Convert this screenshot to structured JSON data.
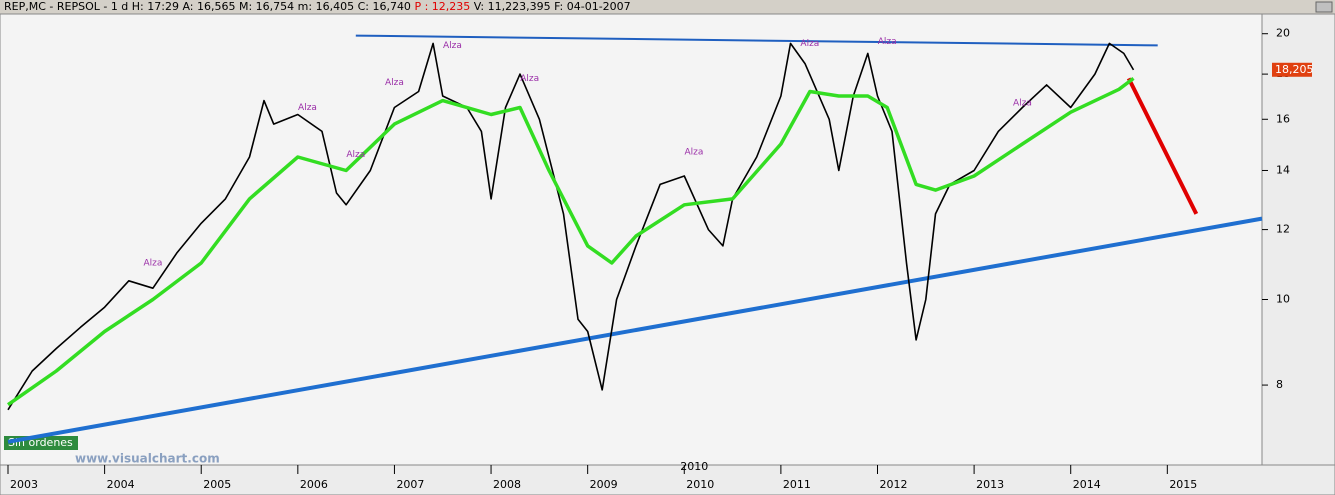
{
  "chart_data": {
    "type": "line",
    "header": [
      {
        "text": "REP,MC - REPSOL - 1 d H: 17:29 A: 16,565 M: 16,754 m: 16,405 C: 16,740",
        "color": "#000000"
      },
      {
        "text": "P : 12,235",
        "color": "#e00000"
      },
      {
        "text": "V: 11,223,395 F: 04-01-2007",
        "color": "#000000"
      }
    ],
    "log_scale": true,
    "xlim": [
      2003,
      2015.98
    ],
    "xticks": [
      2003,
      2004,
      2005,
      2006,
      2007,
      2008,
      2009,
      2010,
      2011,
      2012,
      2013,
      2014,
      2015
    ],
    "ylim": [
      6.58,
      21.0
    ],
    "yticks": [
      8,
      10,
      12,
      14,
      16,
      18,
      20
    ],
    "series": [
      {
        "color": "#000000",
        "x": [
          2003.0,
          2003.25,
          2003.5,
          2003.75,
          2004.0,
          2004.25,
          2004.5,
          2004.75,
          2005.0,
          2005.25,
          2005.5,
          2005.65,
          2005.75,
          2006.0,
          2006.25,
          2006.4,
          2006.5,
          2006.75,
          2007.0,
          2007.25,
          2007.4,
          2007.5,
          2007.75,
          2007.9,
          2008.0,
          2008.15,
          2008.3,
          2008.5,
          2008.75,
          2008.9,
          2009.0,
          2009.15,
          2009.3,
          2009.5,
          2009.75,
          2010.0,
          2010.25,
          2010.4,
          2010.5,
          2010.75,
          2011.0,
          2011.1,
          2011.25,
          2011.5,
          2011.6,
          2011.75,
          2011.9,
          2012.0,
          2012.15,
          2012.3,
          2012.4,
          2012.5,
          2012.6,
          2012.75,
          2013.0,
          2013.25,
          2013.5,
          2013.75,
          2014.0,
          2014.25,
          2014.4,
          2014.55,
          2014.65
        ],
        "values": [
          7.5,
          8.3,
          8.8,
          9.3,
          9.8,
          10.5,
          10.3,
          11.3,
          12.2,
          13.0,
          14.5,
          16.8,
          15.8,
          16.2,
          15.5,
          13.2,
          12.8,
          14.0,
          16.5,
          17.2,
          19.5,
          17.0,
          16.5,
          15.5,
          13.0,
          16.5,
          18.0,
          16.0,
          12.5,
          9.5,
          9.2,
          7.9,
          10.0,
          11.5,
          13.5,
          13.8,
          12.0,
          11.5,
          13.0,
          14.5,
          17.0,
          19.5,
          18.5,
          16.0,
          14.0,
          17.0,
          19.0,
          17.0,
          15.5,
          11.0,
          9.0,
          10.0,
          12.5,
          13.5,
          14.0,
          15.5,
          16.5,
          17.5,
          16.5,
          18.0,
          19.5,
          19.0,
          18.2
        ],
        "width": 1.6
      },
      {
        "color": "#33dd22",
        "x": [
          2003.0,
          2003.5,
          2004.0,
          2004.5,
          2005.0,
          2005.5,
          2006.0,
          2006.5,
          2007.0,
          2007.5,
          2008.0,
          2008.3,
          2008.6,
          2009.0,
          2009.25,
          2009.5,
          2010.0,
          2010.5,
          2011.0,
          2011.3,
          2011.6,
          2011.9,
          2012.1,
          2012.4,
          2012.6,
          2013.0,
          2013.5,
          2014.0,
          2014.5,
          2014.65
        ],
        "values": [
          7.6,
          8.3,
          9.2,
          10.0,
          11.0,
          13.0,
          14.5,
          14.0,
          15.8,
          16.8,
          16.2,
          16.5,
          14.0,
          11.5,
          11.0,
          11.8,
          12.8,
          13.0,
          15.0,
          17.2,
          17.0,
          17.0,
          16.5,
          13.5,
          13.3,
          13.8,
          15.0,
          16.3,
          17.3,
          17.8
        ],
        "width": 3.5
      }
    ],
    "lines": [
      {
        "color": "#1f6fd0",
        "x": [
          2003.0,
          2015.98
        ],
        "values": [
          6.9,
          12.35
        ],
        "width": 4
      },
      {
        "color": "#1f5fc0",
        "x": [
          2006.6,
          2014.9
        ],
        "values": [
          19.9,
          19.4
        ],
        "width": 2
      },
      {
        "color": "#e00000",
        "x": [
          2014.6,
          2015.3
        ],
        "values": [
          17.8,
          12.5
        ],
        "width": 4
      }
    ],
    "annotations": [
      {
        "text": "Alza",
        "x": 2004.5,
        "y": 11.0
      },
      {
        "text": "Alza",
        "x": 2006.1,
        "y": 16.5
      },
      {
        "text": "Alza",
        "x": 2006.6,
        "y": 14.6
      },
      {
        "text": "Alza",
        "x": 2007.0,
        "y": 17.6
      },
      {
        "text": "Alza",
        "x": 2007.6,
        "y": 19.4
      },
      {
        "text": "Alza",
        "x": 2008.4,
        "y": 17.8
      },
      {
        "text": "Alza",
        "x": 2010.1,
        "y": 14.7
      },
      {
        "text": "Alza",
        "x": 2011.3,
        "y": 19.5
      },
      {
        "text": "Alza",
        "x": 2012.1,
        "y": 19.6
      },
      {
        "text": "Alza",
        "x": 2013.5,
        "y": 16.7
      }
    ],
    "last_price": {
      "value": 18.205,
      "label": "18,205"
    },
    "status": "Sin ordenes",
    "watermark": "www.visualchart.com",
    "marker_label": "2010"
  }
}
